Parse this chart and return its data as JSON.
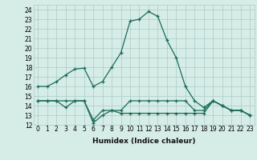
{
  "title": "",
  "xlabel": "Humidex (Indice chaleur)",
  "ylabel": "",
  "background_color": "#d6ece6",
  "grid_color": "#aaccc5",
  "line_color": "#1a6b5a",
  "xlim": [
    -0.5,
    23.5
  ],
  "ylim": [
    12,
    24.5
  ],
  "xticks": [
    0,
    1,
    2,
    3,
    4,
    5,
    6,
    7,
    8,
    9,
    10,
    11,
    12,
    13,
    14,
    15,
    16,
    17,
    18,
    19,
    20,
    21,
    22,
    23
  ],
  "yticks": [
    12,
    13,
    14,
    15,
    16,
    17,
    18,
    19,
    20,
    21,
    22,
    23,
    24
  ],
  "series1_y": [
    16.0,
    16.0,
    16.5,
    17.2,
    17.8,
    17.9,
    16.0,
    16.5,
    18.0,
    19.5,
    22.8,
    23.0,
    23.8,
    23.3,
    20.8,
    19.0,
    16.0,
    14.5,
    13.8,
    14.5,
    14.0,
    13.5,
    13.5,
    13.0
  ],
  "series2_y": [
    14.5,
    14.5,
    14.5,
    14.5,
    14.5,
    14.5,
    12.2,
    13.0,
    13.5,
    13.2,
    13.2,
    13.2,
    13.2,
    13.2,
    13.2,
    13.2,
    13.2,
    13.2,
    13.2,
    14.5,
    14.0,
    13.5,
    13.5,
    13.0
  ],
  "series3_y": [
    14.5,
    14.5,
    14.5,
    13.8,
    14.5,
    14.5,
    12.5,
    13.5,
    13.5,
    13.5,
    14.5,
    14.5,
    14.5,
    14.5,
    14.5,
    14.5,
    14.5,
    13.5,
    13.5,
    14.5,
    14.0,
    13.5,
    13.5,
    13.0
  ],
  "tick_fontsize": 5.5,
  "xlabel_fontsize": 6.5
}
